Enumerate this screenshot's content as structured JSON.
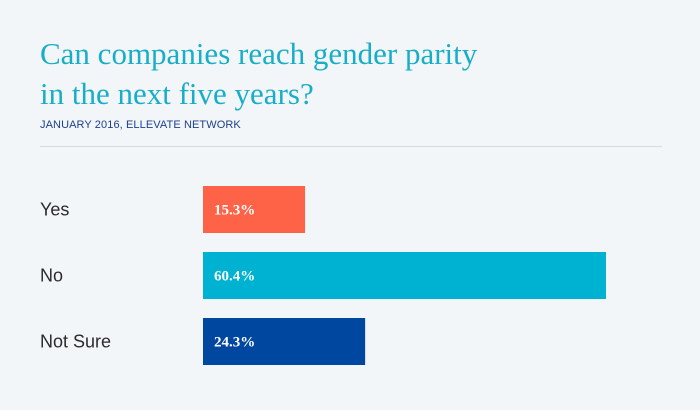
{
  "header": {
    "title_line1": "Can companies reach gender parity",
    "title_line2": "in the next five years?",
    "subtitle": "JANUARY 2016, ELLEVATE NETWORK"
  },
  "chart_data": {
    "type": "bar",
    "orientation": "horizontal",
    "title": "Can companies reach gender parity in the next five years?",
    "subtitle": "JANUARY 2016, ELLEVATE NETWORK",
    "categories": [
      "Yes",
      "No",
      "Not Sure"
    ],
    "values": [
      15.3,
      60.4,
      24.3
    ],
    "value_labels": [
      "15.3%",
      "60.4%",
      "24.3%"
    ],
    "colors": [
      "#ff6347",
      "#00b2d2",
      "#0047a0"
    ],
    "unit": "%",
    "xlim": [
      0,
      100
    ],
    "grid": false,
    "legend": "none"
  }
}
